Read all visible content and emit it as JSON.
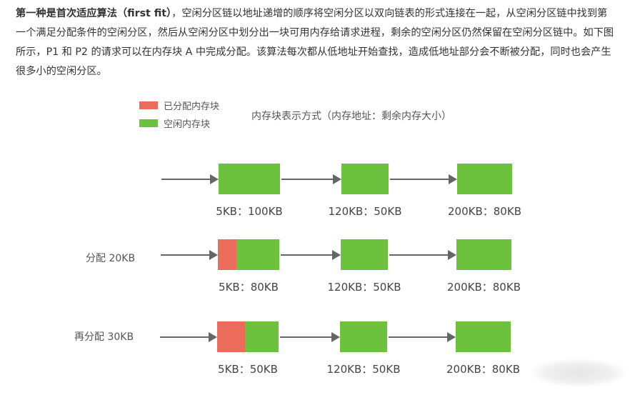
{
  "paragraph": {
    "bold_lead": "第一种是首次适应算法（first fit）",
    "text": "，空闲分区链以地址递增的顺序将空闲分区以双向链表的形式连接在一起，从空闲分区链中找到第一个满足分配条件的空闲分区，然后从空闲分区中划分出一块可用内存给请求进程，剩余的空闲分区仍然保留在空闲分区链中。如下图所示，P1 和 P2 的请求可以在内存块 A 中完成分配。该算法每次都从低地址开始查找，造成低地址部分会不断被分配，同时也会产生很多小的空闲分区。"
  },
  "legend": {
    "allocated": {
      "label": "已分配内存块",
      "color": "#ec6c5c"
    },
    "free": {
      "label": "空闲内存块",
      "color": "#6cc23c"
    }
  },
  "caption": "内存块表示方式（内存地址：剩余内存大小）",
  "rows": [
    {
      "label": "",
      "blocks": [
        {
          "label": "5KB：100KB",
          "used_fraction": 0
        },
        {
          "label": "120KB：50KB",
          "used_fraction": 0
        },
        {
          "label": "200KB：80KB",
          "used_fraction": 0
        }
      ]
    },
    {
      "label": "分配 20KB",
      "blocks": [
        {
          "label": "5KB：80KB",
          "used_fraction": 0.2
        },
        {
          "label": "120KB：50KB",
          "used_fraction": 0
        },
        {
          "label": "200KB：80KB",
          "used_fraction": 0
        }
      ]
    },
    {
      "label": "再分配 30KB",
      "blocks": [
        {
          "label": "5KB：50KB",
          "used_fraction": 0.5
        },
        {
          "label": "120KB：50KB",
          "used_fraction": 0
        },
        {
          "label": "200KB：80KB",
          "used_fraction": 0
        }
      ]
    }
  ]
}
